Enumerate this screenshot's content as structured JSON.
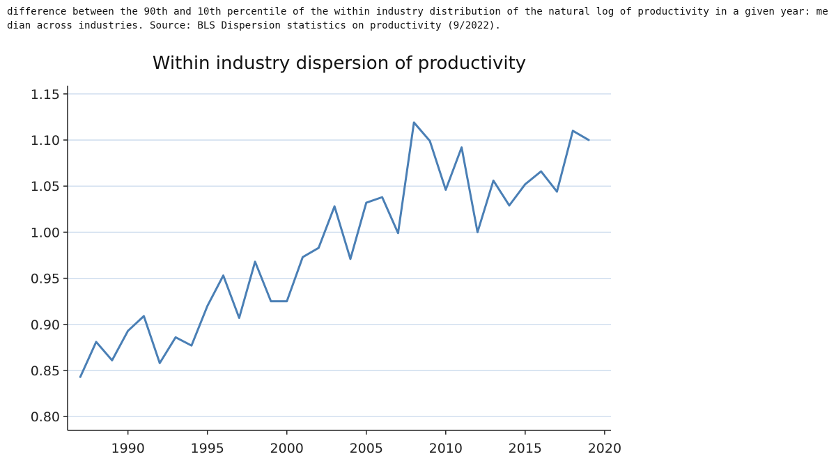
{
  "caption": "difference between the 90th and 10th percentile of the within industry distribution of the natural log of productivity in a given year: median across industries. Source: BLS Dispersion statistics on productivity (9/2022).",
  "chart_data": {
    "type": "line",
    "title": "Within industry dispersion of productivity",
    "xlabel": "",
    "ylabel": "",
    "xlim": [
      1986.2,
      2020.4
    ],
    "ylim": [
      0.785,
      1.165
    ],
    "xticks": [
      1990,
      1995,
      2000,
      2005,
      2010,
      2015,
      2020
    ],
    "xtick_labels": [
      "1990",
      "1995",
      "2000",
      "2005",
      "2010",
      "2015",
      "2020"
    ],
    "yticks": [
      0.8,
      0.85,
      0.9,
      0.95,
      1.0,
      1.05,
      1.1,
      1.15
    ],
    "ytick_labels": [
      "0.80",
      "0.85",
      "0.90",
      "0.95",
      "1.00",
      "1.05",
      "1.10",
      "1.15"
    ],
    "grid": "horizontal",
    "line_color": "#4a7fb5",
    "grid_color": "#c9d9ec",
    "x": [
      1987,
      1988,
      1989,
      1990,
      1991,
      1992,
      1993,
      1994,
      1995,
      1996,
      1997,
      1998,
      1999,
      2000,
      2001,
      2002,
      2003,
      2004,
      2005,
      2006,
      2007,
      2008,
      2009,
      2010,
      2011,
      2012,
      2013,
      2014,
      2015,
      2016,
      2017,
      2018,
      2019
    ],
    "series": [
      {
        "values": [
          0.843,
          0.881,
          0.861,
          0.893,
          0.909,
          0.858,
          0.886,
          0.877,
          0.92,
          0.953,
          0.907,
          0.968,
          0.925,
          0.925,
          0.973,
          0.983,
          1.028,
          0.971,
          1.032,
          1.038,
          0.999,
          1.119,
          1.099,
          1.046,
          1.092,
          1.0,
          1.056,
          1.029,
          1.052,
          1.066,
          1.044,
          1.11,
          1.1
        ]
      }
    ]
  }
}
